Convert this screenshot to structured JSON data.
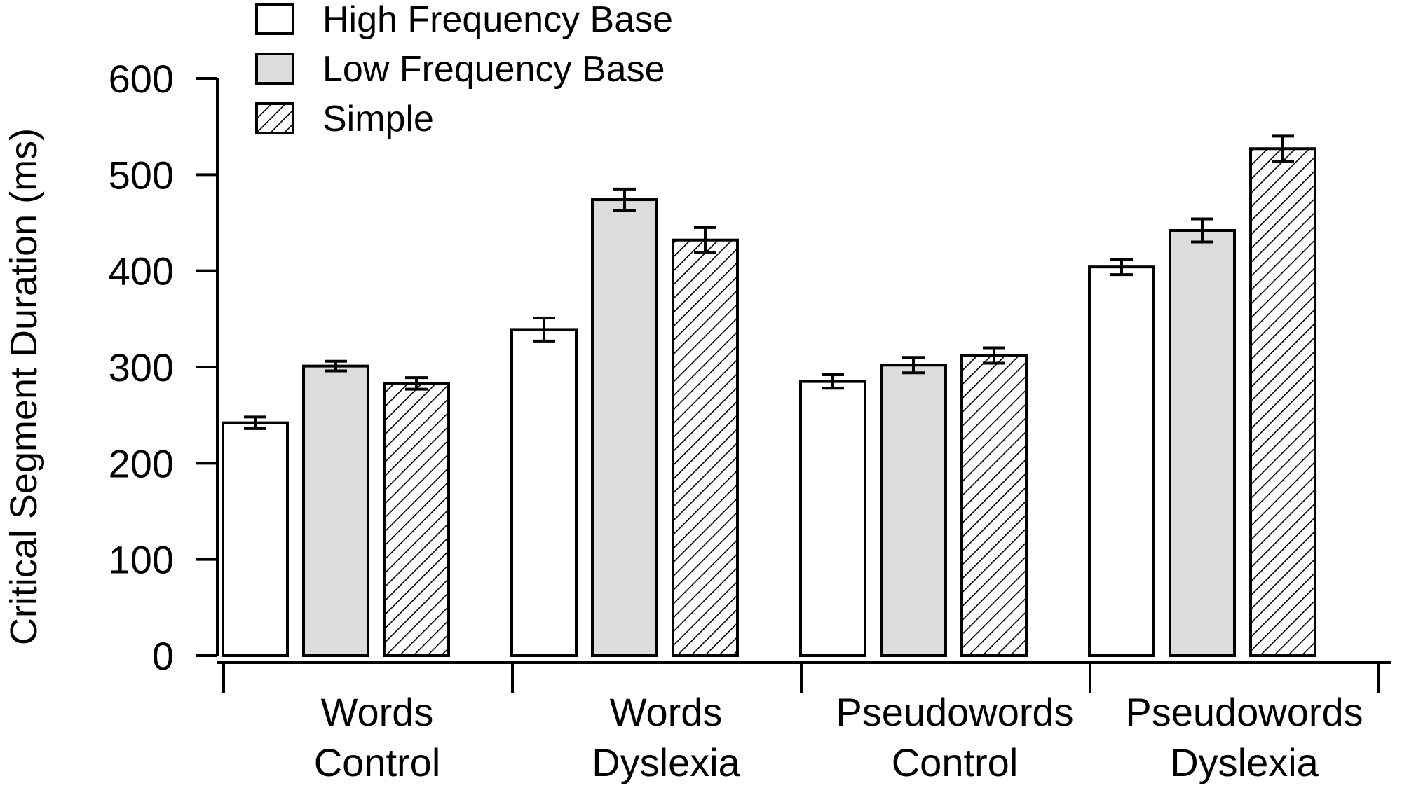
{
  "chart_data": {
    "type": "bar",
    "title": "",
    "xlabel": "",
    "ylabel": "Critical Segment Duration (ms)",
    "ylim": [
      0,
      600
    ],
    "yticks": [
      "0",
      "100",
      "200",
      "300",
      "400",
      "500",
      "600"
    ],
    "grid": false,
    "legend_position": "top-left",
    "categories": [
      [
        "Words",
        "Control"
      ],
      [
        "Words",
        "Dyslexia"
      ],
      [
        "Pseudowords",
        "Control"
      ],
      [
        "Pseudowords",
        "Dyslexia"
      ]
    ],
    "series": [
      {
        "name": "High Frequency Base",
        "fill": "white",
        "values": [
          242,
          339,
          285,
          404
        ],
        "errors": [
          6,
          12,
          7,
          8
        ]
      },
      {
        "name": "Low Frequency Base",
        "fill": "gray",
        "values": [
          301,
          474,
          302,
          442
        ],
        "errors": [
          5,
          11,
          8,
          12
        ]
      },
      {
        "name": "Simple",
        "fill": "hatch",
        "values": [
          283,
          432,
          312,
          527
        ],
        "errors": [
          6,
          13,
          8,
          13
        ]
      }
    ],
    "colors": {
      "stroke": "#000000",
      "gray_fill": "#dcdcdc",
      "white_fill": "#ffffff"
    }
  }
}
